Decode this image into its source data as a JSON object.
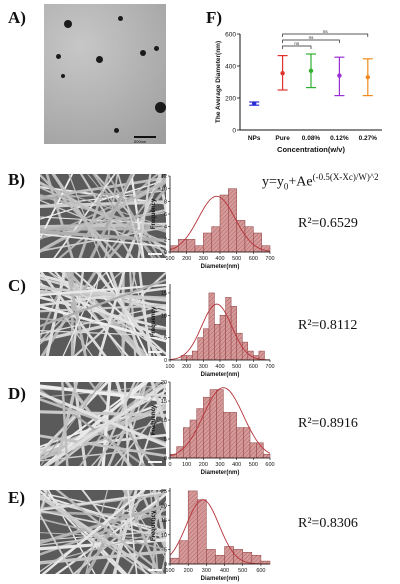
{
  "labels": {
    "A": "A)",
    "B": "B)",
    "C": "C)",
    "D": "D)",
    "E": "E)",
    "F": "F)"
  },
  "tem": {
    "scale_text": "500nm"
  },
  "sem": {
    "scale_text": "2 μm"
  },
  "equation": {
    "lhs": "y=y",
    "sub0": "0",
    "mid": "+Ae",
    "exponent": "(-0.5(X-Xc)/W)^2"
  },
  "r2": [
    "R²=0.6529",
    "R²=0.8112",
    "R²=0.8916",
    "R²=0.8306"
  ],
  "chart_data": [
    {
      "id": "F",
      "type": "scatter",
      "title": "",
      "xlabel": "Concentration(w/v)",
      "ylabel": "The Average Diameter(nm)",
      "categories": [
        "NPs",
        "Pure",
        "0.08%",
        "0.12%",
        "0.27%"
      ],
      "values": [
        165,
        355,
        370,
        340,
        330
      ],
      "error_low": [
        155,
        250,
        265,
        215,
        215
      ],
      "error_high": [
        175,
        465,
        475,
        455,
        445
      ],
      "colors": [
        "#2b2bd6",
        "#e0332b",
        "#2fb02f",
        "#9a2fd6",
        "#f08a1e"
      ],
      "ylim": [
        0,
        600
      ],
      "yticks": [
        0,
        200,
        400,
        600
      ],
      "significance": [
        {
          "from": 1,
          "to": 2,
          "label": "ns"
        },
        {
          "from": 1,
          "to": 3,
          "label": "ns"
        },
        {
          "from": 1,
          "to": 4,
          "label": "ns"
        }
      ]
    },
    {
      "id": "B",
      "type": "bar",
      "xlabel": "Diameter(nm)",
      "ylabel": "Frequency",
      "x_range": [
        100,
        700
      ],
      "bin_width": 50,
      "xticks": [
        100,
        200,
        300,
        400,
        500,
        600,
        700
      ],
      "yticks": [
        0,
        2,
        4,
        6,
        8,
        10,
        12
      ],
      "ylim": [
        0,
        12
      ],
      "values": [
        1,
        2,
        2,
        1,
        3,
        4,
        9,
        10,
        5,
        4,
        3,
        1
      ],
      "fit": {
        "y0": 0,
        "A": 8.8,
        "xc": 380,
        "w": 110
      }
    },
    {
      "id": "C",
      "type": "bar",
      "xlabel": "Diameter(nm)",
      "ylabel": "Frequency",
      "x_range": [
        100,
        700
      ],
      "bin_width": 33.3333,
      "xticks": [
        100,
        200,
        300,
        400,
        500,
        600,
        700
      ],
      "yticks": [
        0,
        5,
        10,
        15
      ],
      "ylim": [
        0,
        17
      ],
      "values": [
        0,
        0,
        1,
        1,
        2,
        5,
        7,
        15,
        8,
        10,
        14,
        12,
        6,
        4,
        2,
        1,
        2,
        0
      ],
      "fit": {
        "y0": 0,
        "A": 12.5,
        "xc": 380,
        "w": 90
      }
    },
    {
      "id": "D",
      "type": "bar",
      "xlabel": "Diameter(nm)",
      "ylabel": "Frequency",
      "x_range": [
        0,
        600
      ],
      "bin_width": 40,
      "xticks": [
        0,
        100,
        200,
        300,
        400,
        500,
        600
      ],
      "yticks": [
        0,
        5,
        10,
        15,
        20
      ],
      "ylim": [
        0,
        20
      ],
      "values": [
        1,
        3,
        8,
        10,
        13,
        16,
        18,
        18,
        12,
        12,
        8,
        8,
        4,
        4,
        1
      ],
      "fit": {
        "y0": 0,
        "A": 18.5,
        "xc": 320,
        "w": 120
      }
    },
    {
      "id": "E",
      "type": "bar",
      "xlabel": "Diameter(nm)",
      "ylabel": "Frequency",
      "x_range": [
        100,
        650
      ],
      "bin_width": 50,
      "xticks": [
        100,
        200,
        300,
        400,
        500,
        600
      ],
      "yticks": [
        0,
        5,
        10,
        15,
        20,
        25
      ],
      "ylim": [
        0,
        26
      ],
      "values": [
        2,
        8,
        25,
        22,
        5,
        3,
        6,
        5,
        4,
        3,
        1
      ],
      "fit": {
        "y0": 0,
        "A": 22,
        "xc": 280,
        "w": 90
      }
    }
  ]
}
